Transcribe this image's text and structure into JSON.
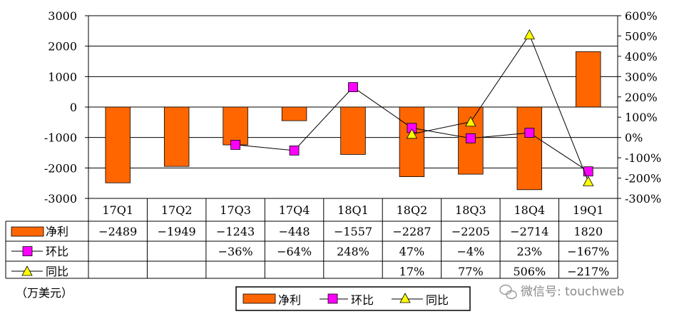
{
  "chart_data": {
    "type": "bar",
    "categories": [
      "17Q1",
      "17Q2",
      "17Q3",
      "17Q4",
      "18Q1",
      "18Q2",
      "18Q3",
      "18Q4",
      "19Q1"
    ],
    "ylim": [
      -3000,
      3000
    ],
    "y2lim": [
      -300,
      600
    ],
    "yticks": [
      "3000",
      "2000",
      "1000",
      "0",
      "-1000",
      "-2000",
      "-3000"
    ],
    "y2ticks": [
      "600%",
      "500%",
      "400%",
      "300%",
      "200%",
      "100%",
      "0%",
      "-100%",
      "-200%",
      "-300%"
    ],
    "unit_label": "（万美元）",
    "legend_position": "bottom",
    "colors": {
      "net_profit": "#FF6600",
      "qoq": "#FF00FF",
      "yoy": "#FFFF00",
      "line": "#000000"
    },
    "series": [
      {
        "name": "净利",
        "kind": "bar",
        "values": [
          -2489,
          -1949,
          -1243,
          -448,
          -1557,
          -2287,
          -2205,
          -2714,
          1820
        ],
        "labels": [
          "−2489",
          "−1949",
          "−1243",
          "−448",
          "−1557",
          "−2287",
          "−2205",
          "−2714",
          "1820"
        ]
      },
      {
        "name": "环比",
        "kind": "line",
        "marker": "square",
        "values": [
          null,
          null,
          -36,
          -64,
          248,
          47,
          -4,
          23,
          -167
        ],
        "labels": [
          "",
          "",
          "−36%",
          "−64%",
          "248%",
          "47%",
          "−4%",
          "23%",
          "−167%"
        ]
      },
      {
        "name": "同比",
        "kind": "line",
        "marker": "triangle",
        "values": [
          null,
          null,
          null,
          null,
          null,
          17,
          77,
          506,
          -217
        ],
        "labels": [
          "",
          "",
          "",
          "",
          "",
          "17%",
          "77%",
          "506%",
          "−217%"
        ]
      }
    ]
  },
  "watermark": {
    "icon": "wechat-icon",
    "text": "微信号: touchweb"
  }
}
